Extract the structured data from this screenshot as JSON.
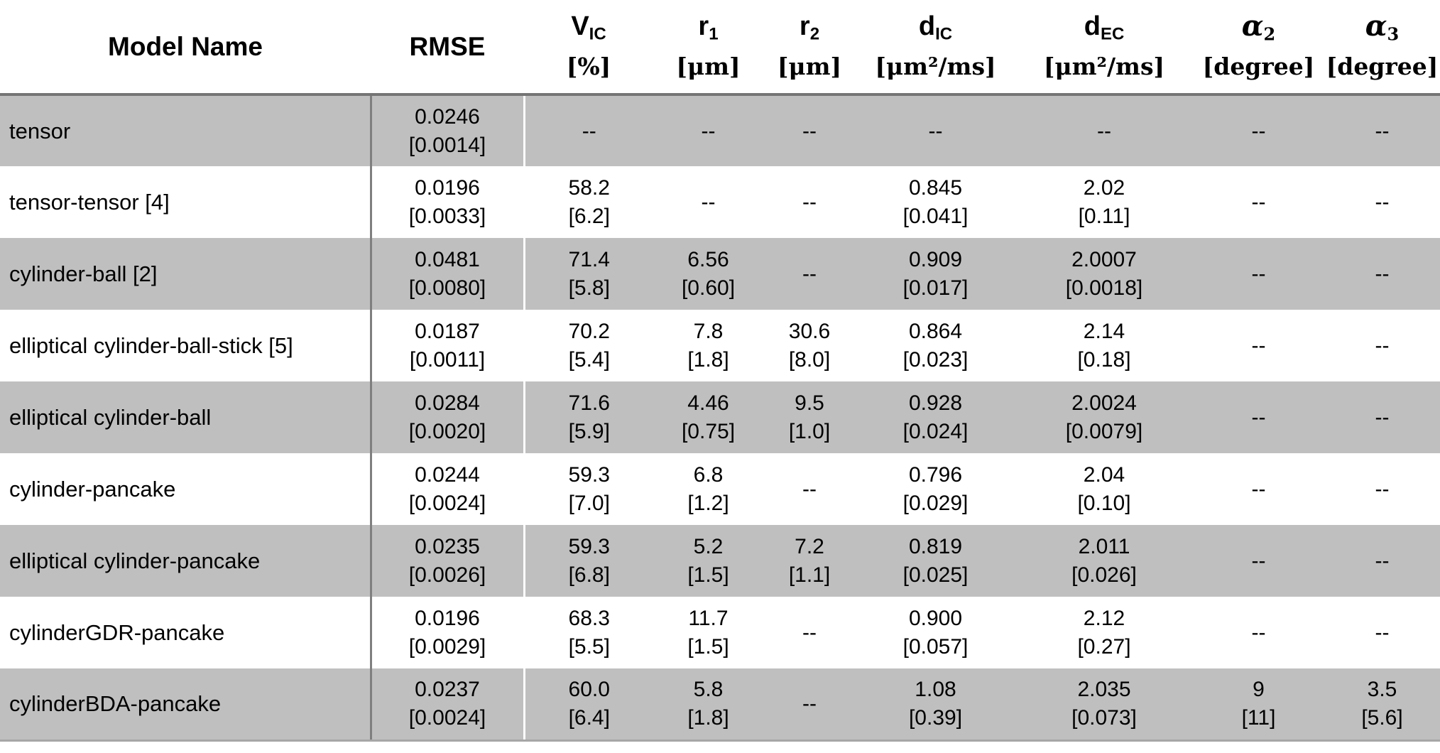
{
  "table": {
    "band_color": "#bfbfbf",
    "separator_color": "#7f7f7f",
    "header_rule_color": "#757575",
    "columns": [
      {
        "label": "Model Name"
      },
      {
        "label": "RMSE"
      },
      {
        "sym": "V",
        "sub": "IC",
        "unit": "[%]"
      },
      {
        "sym": "r",
        "sub": "1",
        "unit": "[μm]"
      },
      {
        "sym": "r",
        "sub": "2",
        "unit": "[μm]"
      },
      {
        "sym": "d",
        "sub": "IC",
        "unit": "[μm²/ms]"
      },
      {
        "sym": "d",
        "sub": "EC",
        "unit": "[μm²/ms]"
      },
      {
        "sym": "α",
        "sub": "2",
        "unit": "[degree]"
      },
      {
        "sym": "α",
        "sub": "3",
        "unit": "[degree]"
      }
    ],
    "rows": [
      {
        "model": "tensor",
        "cells": [
          [
            "0.0246",
            "[0.0014]"
          ],
          [
            "--"
          ],
          [
            "--"
          ],
          [
            "--"
          ],
          [
            "--"
          ],
          [
            "--"
          ],
          [
            "--"
          ],
          [
            "--"
          ]
        ]
      },
      {
        "model": "tensor-tensor [4]",
        "cells": [
          [
            "0.0196",
            "[0.0033]"
          ],
          [
            "58.2",
            "[6.2]"
          ],
          [
            "--"
          ],
          [
            "--"
          ],
          [
            "0.845",
            "[0.041]"
          ],
          [
            "2.02",
            "[0.11]"
          ],
          [
            "--"
          ],
          [
            "--"
          ]
        ]
      },
      {
        "model": "cylinder-ball [2]",
        "cells": [
          [
            "0.0481",
            "[0.0080]"
          ],
          [
            "71.4",
            "[5.8]"
          ],
          [
            "6.56",
            "[0.60]"
          ],
          [
            "--"
          ],
          [
            "0.909",
            "[0.017]"
          ],
          [
            "2.0007",
            "[0.0018]"
          ],
          [
            "--"
          ],
          [
            "--"
          ]
        ]
      },
      {
        "model": "elliptical cylinder-ball-stick [5]",
        "cells": [
          [
            "0.0187",
            "[0.0011]"
          ],
          [
            "70.2",
            "[5.4]"
          ],
          [
            "7.8",
            "[1.8]"
          ],
          [
            "30.6",
            "[8.0]"
          ],
          [
            "0.864",
            "[0.023]"
          ],
          [
            "2.14",
            "[0.18]"
          ],
          [
            "--"
          ],
          [
            "--"
          ]
        ]
      },
      {
        "model": "elliptical cylinder-ball",
        "cells": [
          [
            "0.0284",
            "[0.0020]"
          ],
          [
            "71.6",
            "[5.9]"
          ],
          [
            "4.46",
            "[0.75]"
          ],
          [
            "9.5",
            "[1.0]"
          ],
          [
            "0.928",
            "[0.024]"
          ],
          [
            "2.0024",
            "[0.0079]"
          ],
          [
            "--"
          ],
          [
            "--"
          ]
        ]
      },
      {
        "model": "cylinder-pancake",
        "cells": [
          [
            "0.0244",
            "[0.0024]"
          ],
          [
            "59.3",
            "[7.0]"
          ],
          [
            "6.8",
            "[1.2]"
          ],
          [
            "--"
          ],
          [
            "0.796",
            "[0.029]"
          ],
          [
            "2.04",
            "[0.10]"
          ],
          [
            "--"
          ],
          [
            "--"
          ]
        ]
      },
      {
        "model": "elliptical cylinder-pancake",
        "cells": [
          [
            "0.0235",
            "[0.0026]"
          ],
          [
            "59.3",
            "[6.8]"
          ],
          [
            "5.2",
            "[1.5]"
          ],
          [
            "7.2",
            "[1.1]"
          ],
          [
            "0.819",
            "[0.025]"
          ],
          [
            "2.011",
            "[0.026]"
          ],
          [
            "--"
          ],
          [
            "--"
          ]
        ]
      },
      {
        "model": "cylinderGDR-pancake",
        "cells": [
          [
            "0.0196",
            "[0.0029]"
          ],
          [
            "68.3",
            "[5.5]"
          ],
          [
            "11.7",
            "[1.5]"
          ],
          [
            "--"
          ],
          [
            "0.900",
            "[0.057]"
          ],
          [
            "2.12",
            "[0.27]"
          ],
          [
            "--"
          ],
          [
            "--"
          ]
        ]
      },
      {
        "model": "cylinderBDA-pancake",
        "cells": [
          [
            "0.0237",
            "[0.0024]"
          ],
          [
            "60.0",
            "[6.4]"
          ],
          [
            "5.8",
            "[1.8]"
          ],
          [
            "--"
          ],
          [
            "1.08",
            "[0.39]"
          ],
          [
            "2.035",
            "[0.073]"
          ],
          [
            "9",
            "[11]"
          ],
          [
            "3.5",
            "[5.6]"
          ]
        ]
      }
    ]
  }
}
